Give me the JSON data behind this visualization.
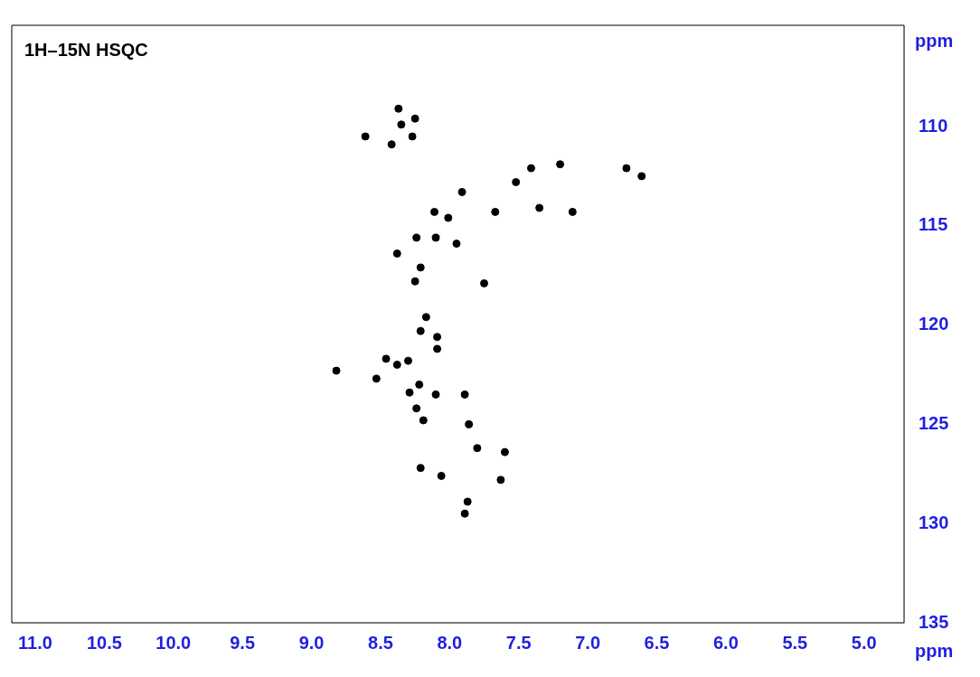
{
  "chart_data": {
    "type": "scatter",
    "title": "1H–15N HSQC",
    "xlabel": "ppm",
    "ylabel": "ppm",
    "xlim": [
      11.17,
      4.71
    ],
    "ylim": [
      135,
      104.9
    ],
    "xticks": [
      {
        "value": 11,
        "label": "11.0"
      },
      10.5,
      {
        "value": 10,
        "label": "10.0"
      },
      9.5,
      {
        "value": 9,
        "label": "9.0"
      },
      8.5,
      {
        "value": 8,
        "label": "8.0"
      },
      7.5,
      {
        "value": 7,
        "label": "7.0"
      },
      6.5,
      {
        "value": 6,
        "label": "6.0"
      },
      5.5,
      {
        "value": 5,
        "label": "5.0"
      }
    ],
    "yticks": [
      110,
      115,
      120,
      125,
      130,
      135
    ],
    "grid": false,
    "legend": false,
    "marker": "circle",
    "series": [
      {
        "color": "#000000",
        "x": [
          8.61,
          8.42,
          8.37,
          8.35,
          8.25,
          8.27,
          7.41,
          7.52,
          7.2,
          7.35,
          7.11,
          6.72,
          6.61,
          7.67,
          7.91,
          8.11,
          8.01,
          8.1,
          8.24,
          8.38,
          8.21,
          8.25,
          7.95,
          7.75,
          8.17,
          8.21,
          8.09,
          8.09,
          8.46,
          8.38,
          8.3,
          8.53,
          8.82,
          8.22,
          8.29,
          8.1,
          7.89,
          8.24,
          8.19,
          7.86,
          7.8,
          7.6,
          8.21,
          7.87,
          7.89,
          7.63,
          8.06
        ],
        "values": [
          110.5,
          110.9,
          109.1,
          109.9,
          109.6,
          110.5,
          112.1,
          112.8,
          111.9,
          114.1,
          114.3,
          112.1,
          112.5,
          114.3,
          113.3,
          114.3,
          114.6,
          115.6,
          115.6,
          116.4,
          117.1,
          117.8,
          115.9,
          117.9,
          119.6,
          120.3,
          120.6,
          121.2,
          121.7,
          122,
          121.8,
          122.7,
          122.3,
          123,
          123.4,
          123.5,
          123.5,
          124.2,
          124.8,
          125,
          126.2,
          126.4,
          127.2,
          128.9,
          129.5,
          127.8,
          127.6
        ]
      }
    ]
  }
}
